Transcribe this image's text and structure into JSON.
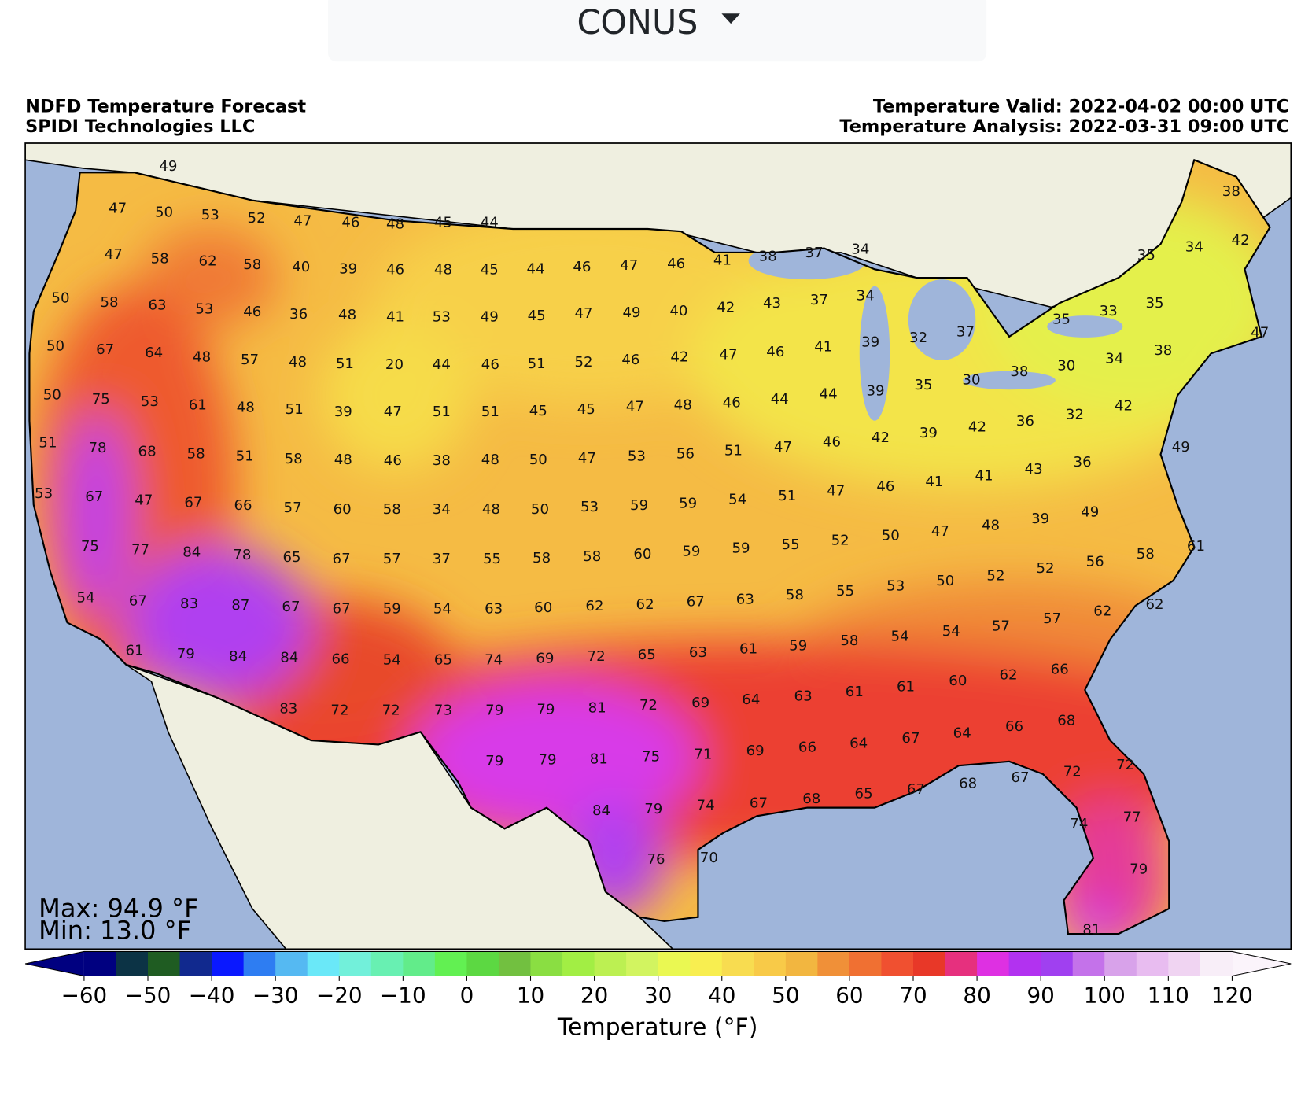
{
  "dropdown": {
    "label": "CONUS"
  },
  "header": {
    "left": [
      "NDFD Temperature Forecast",
      "SPIDI Technologies LLC"
    ],
    "right": [
      "Temperature Valid: 2022-04-02 00:00 UTC",
      "Temperature Analysis: 2022-03-31 09:00 UTC"
    ]
  },
  "map": {
    "max_label": "Max: 94.9 °F",
    "min_label": "Min: 13.0 °F",
    "station_values": [
      [
        49,
        47,
        50,
        53,
        52,
        47,
        46,
        48,
        45,
        44
      ],
      [
        47,
        58,
        62,
        58,
        40,
        39,
        46,
        48,
        45,
        44,
        46,
        47,
        46,
        41,
        38,
        37,
        34
      ],
      [
        50,
        58,
        63,
        53,
        46,
        36,
        48,
        41,
        53,
        49,
        45,
        47,
        49,
        40,
        42,
        43,
        37,
        34,
        33,
        35
      ],
      [
        50,
        67,
        64,
        48,
        57,
        48,
        51,
        20,
        44,
        46,
        51,
        52,
        46,
        42,
        47,
        46,
        41,
        39,
        32,
        37,
        35
      ],
      [
        50,
        75,
        53,
        61,
        48,
        51,
        39,
        47,
        51,
        51,
        45,
        45,
        47,
        48,
        46,
        44,
        44,
        39,
        35,
        30,
        38,
        30,
        34,
        38
      ],
      [
        51,
        78,
        68,
        58,
        51,
        58,
        48,
        46,
        38,
        48,
        50,
        47,
        53,
        56,
        51,
        47,
        46,
        42,
        39,
        42,
        36,
        32,
        42
      ],
      [
        53,
        67,
        47,
        67,
        66,
        57,
        60,
        58,
        34,
        48,
        50,
        53,
        59,
        59,
        54,
        51,
        47,
        46,
        41,
        41,
        43,
        36
      ],
      [
        75,
        77,
        84,
        78,
        65,
        67,
        57,
        37,
        55,
        58,
        58,
        60,
        59,
        59,
        55,
        52,
        50,
        47,
        48,
        39,
        49
      ],
      [
        54,
        67,
        83,
        87,
        67,
        67,
        59,
        54,
        63,
        60,
        62,
        62,
        67,
        63,
        58,
        55,
        53,
        50,
        52,
        52,
        56,
        58,
        61
      ],
      [
        61,
        79,
        84,
        84,
        66,
        54,
        65,
        74,
        69,
        72,
        65,
        63,
        61,
        59,
        58,
        54,
        54,
        57,
        57,
        62,
        62
      ],
      [
        83,
        72,
        72,
        73,
        79,
        79,
        81,
        72,
        69,
        64,
        63,
        61,
        61,
        60,
        62,
        66
      ],
      [
        79,
        79,
        81,
        75,
        71,
        69,
        66,
        64,
        67,
        64,
        66,
        68
      ],
      [
        84,
        79,
        74,
        67,
        68,
        65,
        67,
        68,
        67,
        72,
        72
      ],
      [
        76,
        70,
        74,
        77,
        79,
        81
      ],
      [
        38,
        34,
        42,
        35,
        47,
        49
      ]
    ]
  },
  "colorbar": {
    "label": "Temperature (°F)",
    "lim": [
      -60,
      120
    ],
    "ticks": [
      {
        "value": -60,
        "label": "−60"
      },
      {
        "value": -50,
        "label": "−50"
      },
      {
        "value": -40,
        "label": "−40"
      },
      {
        "value": -30,
        "label": "−30"
      },
      {
        "value": -20,
        "label": "−20"
      },
      {
        "value": -10,
        "label": "−10"
      },
      0,
      10,
      20,
      30,
      40,
      50,
      60,
      70,
      80,
      90,
      100,
      110,
      120
    ],
    "under_color": "#000080",
    "over_color": "#fbf4fb",
    "colors": [
      "#000080",
      "#0c3345",
      "#1f5c22",
      "#11298e",
      "#0a18ff",
      "#2e7df2",
      "#55b9f2",
      "#6ae8f8",
      "#72f0da",
      "#68f0b2",
      "#62ec8a",
      "#62f052",
      "#5cd842",
      "#72c040",
      "#8ade42",
      "#a2ee44",
      "#bcf052",
      "#d2f460",
      "#eaf852",
      "#f8ee50",
      "#f8dc50",
      "#f8ca48",
      "#f2b640",
      "#f09038",
      "#f07032",
      "#f05030",
      "#e83828",
      "#e6307e",
      "#de30e2",
      "#b232f0",
      "#a040f0",
      "#c472ea",
      "#d8a2ea",
      "#e8bcf0",
      "#f0d4f2",
      "#f8eef8"
    ]
  }
}
